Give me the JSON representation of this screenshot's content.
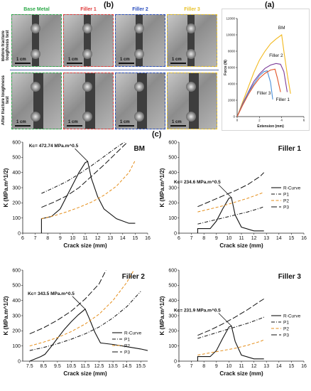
{
  "panel_labels": {
    "b": "(b)",
    "a": "(a)",
    "c": "(c)"
  },
  "photos": {
    "columns": [
      {
        "label": "Base Metal",
        "color": "#2eaa4a"
      },
      {
        "label": "Filler 1",
        "color": "#e03a3a"
      },
      {
        "label": "Filler 2",
        "color": "#2b4fbf"
      },
      {
        "label": "Filler 3",
        "color": "#e8c22a"
      }
    ],
    "rows": [
      "Before fracture toughness test",
      "After fracture toughness test"
    ],
    "scale_label": "1 cm"
  },
  "chart_data": [
    {
      "type": "line",
      "id": "force-extension",
      "title": "",
      "xlabel": "Extension (mm)",
      "ylabel": "Force (N)",
      "xlim": [
        0,
        6
      ],
      "ylim": [
        0,
        12000
      ],
      "xticks": [
        0,
        2,
        4,
        6
      ],
      "yticks": [
        0,
        2000,
        4000,
        6000,
        8000,
        10000,
        12000
      ],
      "series": [
        {
          "name": "BM",
          "color": "#f2b81c",
          "x": [
            0,
            0.5,
            1.0,
            1.5,
            2.0,
            2.5,
            3.0,
            3.5,
            4.0,
            4.2,
            4.5,
            4.8
          ],
          "y": [
            0,
            1800,
            3600,
            5400,
            6900,
            8000,
            8900,
            9500,
            10000,
            8000,
            5200,
            2800
          ]
        },
        {
          "name": "Filler 2",
          "color": "#7d3c98",
          "x": [
            0,
            0.5,
            1.0,
            1.5,
            2.0,
            2.5,
            3.0,
            3.5,
            3.9,
            4.2,
            4.5
          ],
          "y": [
            0,
            1600,
            3000,
            4300,
            5200,
            5900,
            6300,
            6500,
            6400,
            5500,
            3000
          ]
        },
        {
          "name": "Filler 3",
          "color": "#4a8fd9",
          "x": [
            0,
            0.5,
            1.0,
            1.5,
            2.0,
            2.4,
            2.7,
            3.0,
            3.2
          ],
          "y": [
            0,
            1500,
            2900,
            4000,
            5000,
            5500,
            5600,
            4200,
            2100
          ]
        },
        {
          "name": "Filler 1",
          "color": "#e2552a",
          "x": [
            0,
            0.5,
            1.0,
            1.5,
            2.0,
            2.5,
            3.0,
            3.4,
            3.6,
            3.9
          ],
          "y": [
            0,
            1400,
            2700,
            3800,
            4700,
            5300,
            5700,
            5800,
            4800,
            3000
          ]
        }
      ],
      "annotations": [
        "BM",
        "Filler 2",
        "Filler 3",
        "Filler 1"
      ]
    },
    {
      "type": "line",
      "id": "r-curve-bm",
      "title": "BM",
      "annotation": "Kc= 472.74 MPa.m^0.5",
      "xlabel": "Crack size (mm)",
      "ylabel": "K (MPa.m^1/2)",
      "xlim": [
        6,
        16
      ],
      "ylim": [
        0,
        600
      ],
      "xticks": [
        6,
        7,
        8,
        9,
        10,
        11,
        12,
        13,
        14,
        15,
        16
      ],
      "yticks": [
        0,
        100,
        200,
        300,
        400,
        500,
        600
      ],
      "legend": "none",
      "series": [
        {
          "name": "R-Curve",
          "style": "solid",
          "color": "#111111",
          "x": [
            7.5,
            7.5,
            8.3,
            9.0,
            9.5,
            10.0,
            10.5,
            11.0,
            11.2,
            11.5,
            12.0,
            12.5,
            13.5,
            14.5,
            15.0
          ],
          "y": [
            0,
            95,
            110,
            160,
            240,
            320,
            400,
            465,
            473,
            360,
            240,
            160,
            95,
            65,
            65
          ]
        },
        {
          "name": "P1",
          "style": "dashdot",
          "color": "#111111",
          "x": [
            7.5,
            8.5,
            9.5,
            10.5,
            11.5,
            12.5,
            13.5,
            14.5,
            15.0
          ],
          "y": [
            262,
            300,
            340,
            390,
            445,
            505,
            565,
            620,
            650
          ]
        },
        {
          "name": "P2",
          "style": "dashed",
          "color": "#e58e1a",
          "x": [
            7.5,
            8.5,
            9.5,
            10.5,
            11.5,
            12.5,
            13.5,
            14.5,
            15.0
          ],
          "y": [
            95,
            115,
            140,
            170,
            205,
            250,
            310,
            400,
            480
          ]
        },
        {
          "name": "P3",
          "style": "longdash",
          "color": "#111111",
          "x": [
            7.5,
            8.5,
            9.5,
            10.5,
            11.5,
            12.5,
            13.5,
            14.5,
            15.0
          ],
          "y": [
            170,
            205,
            245,
            300,
            375,
            450,
            530,
            610,
            650
          ]
        }
      ]
    },
    {
      "type": "line",
      "id": "r-curve-filler1",
      "title": "Filler 1",
      "annotation": "Kc= 234.6 MPa.m^0.5",
      "xlabel": "Crack size (mm)",
      "ylabel": "K (MPa.m^1/2)",
      "xlim": [
        6,
        16
      ],
      "ylim": [
        0,
        600
      ],
      "xticks": [
        6,
        7,
        8,
        9,
        10,
        11,
        12,
        13,
        14,
        15,
        16
      ],
      "yticks": [
        0,
        100,
        200,
        300,
        400,
        500,
        600
      ],
      "legend": "right",
      "series": [
        {
          "name": "R-Curve",
          "style": "solid",
          "color": "#111111",
          "x": [
            7.5,
            7.5,
            8.5,
            9.0,
            9.5,
            10.0,
            10.2,
            10.5,
            11.0,
            12.0,
            12.8
          ],
          "y": [
            0,
            30,
            30,
            80,
            160,
            230,
            235,
            120,
            40,
            15,
            15
          ]
        },
        {
          "name": "P1",
          "style": "dashdot",
          "color": "#111111",
          "x": [
            7.5,
            8.5,
            9.5,
            10.5,
            11.5,
            12.5,
            12.8
          ],
          "y": [
            60,
            80,
            100,
            120,
            140,
            165,
            175
          ]
        },
        {
          "name": "P2",
          "style": "dashed",
          "color": "#e58e1a",
          "x": [
            7.5,
            8.5,
            9.5,
            10.5,
            11.5,
            12.5,
            12.8
          ],
          "y": [
            140,
            160,
            180,
            205,
            230,
            260,
            270
          ]
        },
        {
          "name": "P3",
          "style": "longdash",
          "color": "#111111",
          "x": [
            7.5,
            8.5,
            9.5,
            10.5,
            11.5,
            12.5,
            12.8
          ],
          "y": [
            175,
            210,
            245,
            280,
            320,
            375,
            400
          ]
        }
      ]
    },
    {
      "type": "line",
      "id": "r-curve-filler2",
      "title": "Filler 2",
      "annotation": "Kc= 343.5 MPa.m^0.5",
      "xlabel": "Crack size (mm)",
      "ylabel": "K (MPa.m^1/2)",
      "xlim": [
        7,
        16
      ],
      "ylim": [
        0,
        600
      ],
      "xticks": [
        7.5,
        8.5,
        9.5,
        10.5,
        11.5,
        12.5,
        13.5,
        14.5,
        15.5
      ],
      "yticks": [
        0,
        100,
        200,
        300,
        400,
        500,
        600
      ],
      "legend": "bottom-right",
      "series": [
        {
          "name": "R-Curve",
          "style": "solid",
          "color": "#111111",
          "x": [
            7.5,
            8.3,
            8.6,
            9.0,
            9.5,
            10.0,
            10.5,
            11.0,
            11.5,
            11.8,
            12.2,
            12.6,
            13.5,
            14.5,
            15.5,
            16.0
          ],
          "y": [
            0,
            30,
            45,
            90,
            150,
            210,
            260,
            305,
            343,
            280,
            190,
            120,
            110,
            95,
            80,
            70
          ]
        },
        {
          "name": "P1",
          "style": "dashdot",
          "color": "#111111",
          "x": [
            7.5,
            8.5,
            9.5,
            10.5,
            11.5,
            12.5,
            13.5,
            14.5,
            15.5
          ],
          "y": [
            70,
            90,
            115,
            145,
            180,
            225,
            285,
            360,
            460
          ]
        },
        {
          "name": "P2",
          "style": "dashed",
          "color": "#e58e1a",
          "x": [
            7.5,
            8.5,
            9.5,
            10.5,
            11.5,
            12.5,
            13.5,
            14.5,
            15.0
          ],
          "y": [
            100,
            125,
            155,
            195,
            245,
            310,
            400,
            520,
            600
          ]
        },
        {
          "name": "P3",
          "style": "longdash",
          "color": "#111111",
          "x": [
            7.5,
            8.5,
            9.5,
            10.5,
            11.5,
            12.5,
            13.0
          ],
          "y": [
            180,
            220,
            270,
            330,
            410,
            510,
            600
          ]
        }
      ]
    },
    {
      "type": "line",
      "id": "r-curve-filler3",
      "title": "Filler 3",
      "annotation": "Kc= 231.9 MPa.m^0.5",
      "xlabel": "Crack size (mm)",
      "ylabel": "K (MPa.m^1/2)",
      "xlim": [
        6,
        16
      ],
      "ylim": [
        0,
        600
      ],
      "xticks": [
        6,
        7,
        8,
        9,
        10,
        11,
        12,
        13,
        14,
        15,
        16
      ],
      "yticks": [
        0,
        100,
        200,
        300,
        400,
        500,
        600
      ],
      "legend": "right",
      "series": [
        {
          "name": "R-Curve",
          "style": "solid",
          "color": "#111111",
          "x": [
            7.5,
            7.5,
            8.5,
            9.0,
            9.5,
            10.0,
            10.2,
            10.5,
            11.0,
            12.0,
            12.8
          ],
          "y": [
            0,
            30,
            30,
            70,
            150,
            225,
            232,
            130,
            40,
            15,
            15
          ]
        },
        {
          "name": "P1",
          "style": "dashdot",
          "color": "#111111",
          "x": [
            7.5,
            8.5,
            9.5,
            10.5,
            11.5,
            12.5,
            12.8
          ],
          "y": [
            150,
            175,
            200,
            225,
            250,
            280,
            290
          ]
        },
        {
          "name": "P2",
          "style": "dashed",
          "color": "#e58e1a",
          "x": [
            7.5,
            8.5,
            9.5,
            10.5,
            11.5,
            12.5,
            12.8
          ],
          "y": [
            40,
            55,
            70,
            85,
            105,
            130,
            140
          ]
        },
        {
          "name": "P3",
          "style": "longdash",
          "color": "#111111",
          "x": [
            7.5,
            8.5,
            9.5,
            10.5,
            11.5,
            12.5,
            12.8
          ],
          "y": [
            170,
            205,
            245,
            290,
            340,
            395,
            410
          ]
        }
      ]
    }
  ]
}
